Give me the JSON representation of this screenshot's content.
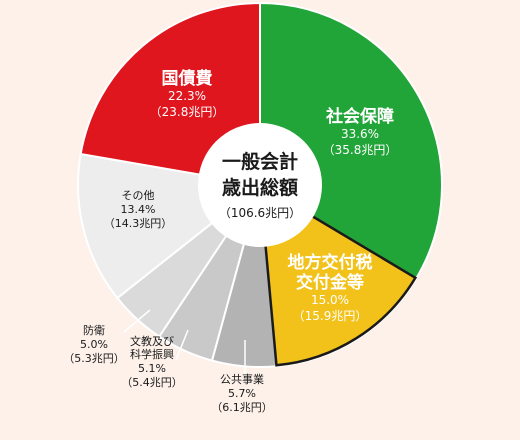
{
  "chart_data": {
    "type": "pie",
    "center_label": {
      "line1": "一般会計",
      "line2": "歳出総額",
      "line3": "（106.6兆円）"
    },
    "slices": [
      {
        "name": "社会保障",
        "name_lines": [
          "社会保障"
        ],
        "percent_text": "33.6%",
        "amount_text": "（35.8兆円）",
        "value": 33.6,
        "color": "#22a538",
        "text_color": "#ffffff"
      },
      {
        "name": "地方交付税交付金等",
        "name_lines": [
          "地方交付税",
          "交付金等"
        ],
        "percent_text": "15.0%",
        "amount_text": "（15.9兆円）",
        "value": 15.0,
        "color": "#f2c11a",
        "text_color": "#ffffff"
      },
      {
        "name": "公共事業",
        "name_lines": [
          "公共事業"
        ],
        "percent_text": "5.7%",
        "amount_text": "（6.1兆円）",
        "value": 5.7,
        "color": "#b3b3b3",
        "text_color": "#1a1a1a"
      },
      {
        "name": "文教及び科学振興",
        "name_lines": [
          "文教及び",
          "科学振興"
        ],
        "percent_text": "5.1%",
        "amount_text": "（5.4兆円）",
        "value": 5.1,
        "color": "#c9c9c9",
        "text_color": "#1a1a1a"
      },
      {
        "name": "防衛",
        "name_lines": [
          "防衛"
        ],
        "percent_text": "5.0%",
        "amount_text": "（5.3兆円）",
        "value": 5.0,
        "color": "#dadada",
        "text_color": "#1a1a1a"
      },
      {
        "name": "その他",
        "name_lines": [
          "その他"
        ],
        "percent_text": "13.4%",
        "amount_text": "（14.3兆円）",
        "value": 13.4,
        "color": "#ededed",
        "text_color": "#1a1a1a"
      },
      {
        "name": "国債費",
        "name_lines": [
          "国債費"
        ],
        "percent_text": "22.3%",
        "amount_text": "（23.8兆円）",
        "value": 22.3,
        "color": "#e0161e",
        "text_color": "#ffffff"
      }
    ]
  }
}
